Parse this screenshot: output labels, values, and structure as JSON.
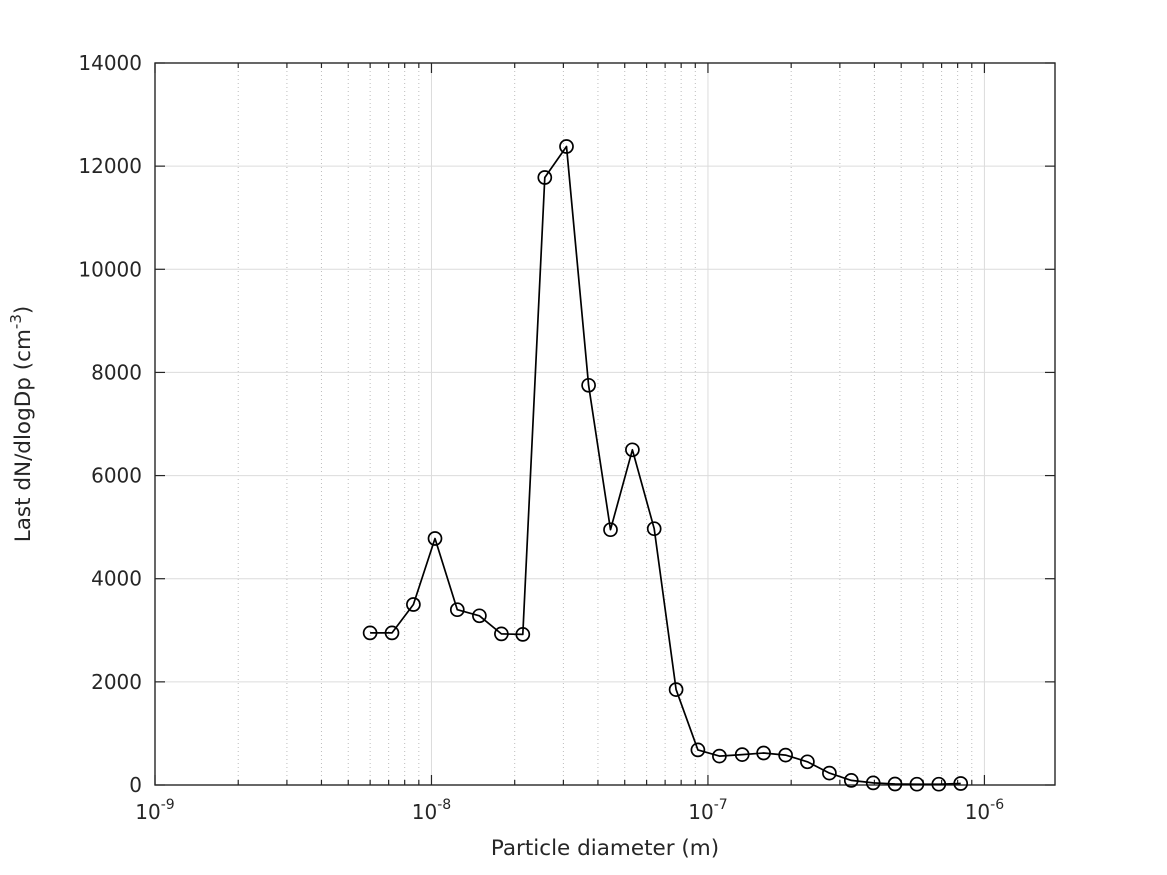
{
  "chart_data": {
    "type": "line",
    "title": "",
    "xlabel": "Particle diameter (m)",
    "ylabel": {
      "prefix": "Last dN/dlogDp (cm",
      "superscript": "-3",
      "suffix": ")"
    },
    "x_scale": "log",
    "y_scale": "linear",
    "xlim": [
      1e-09,
      1.8e-06
    ],
    "ylim": [
      0,
      14000
    ],
    "grid": {
      "major": true,
      "x_minor": true
    },
    "legend": "none",
    "line_color": "#000000",
    "marker": "open-circle",
    "y_ticks": [
      0,
      2000,
      4000,
      6000,
      8000,
      10000,
      12000,
      14000
    ],
    "x_ticks": [
      {
        "value": 1e-09,
        "base": "10",
        "exponent": "-9"
      },
      {
        "value": 1e-08,
        "base": "10",
        "exponent": "-8"
      },
      {
        "value": 1e-07,
        "base": "10",
        "exponent": "-7"
      },
      {
        "value": 1e-06,
        "base": "10",
        "exponent": "-6"
      }
    ],
    "series": [
      {
        "name": "Last dN/dlogDp",
        "x": [
          6e-09,
          7.2e-09,
          8.6e-09,
          1.03e-08,
          1.24e-08,
          1.49e-08,
          1.79e-08,
          2.14e-08,
          2.57e-08,
          3.08e-08,
          3.7e-08,
          4.44e-08,
          5.33e-08,
          6.39e-08,
          7.67e-08,
          9.2e-08,
          1.1e-07,
          1.33e-07,
          1.59e-07,
          1.91e-07,
          2.29e-07,
          2.75e-07,
          3.3e-07,
          3.96e-07,
          4.75e-07,
          5.7e-07,
          6.84e-07,
          8.21e-07
        ],
        "y": [
          2950,
          2950,
          3500,
          4780,
          3400,
          3280,
          2930,
          2920,
          11780,
          12380,
          7750,
          4950,
          6500,
          4970,
          1850,
          680,
          560,
          590,
          620,
          580,
          450,
          230,
          90,
          40,
          20,
          15,
          15,
          30
        ]
      }
    ]
  }
}
